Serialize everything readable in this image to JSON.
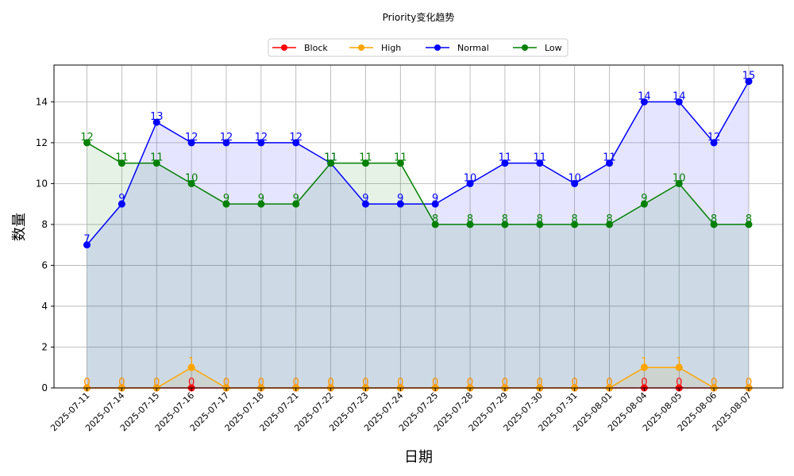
{
  "chart_data": {
    "type": "area",
    "title": "Priority变化趋势",
    "xlabel": "日期",
    "ylabel": "数量",
    "ylim": [
      0,
      15.8
    ],
    "yticks": [
      0,
      2,
      4,
      6,
      8,
      10,
      12,
      14
    ],
    "grid": true,
    "legend_position": "top-center",
    "categories": [
      "2025-07-11",
      "2025-07-14",
      "2025-07-15",
      "2025-07-16",
      "2025-07-17",
      "2025-07-18",
      "2025-07-21",
      "2025-07-22",
      "2025-07-23",
      "2025-07-24",
      "2025-07-25",
      "2025-07-28",
      "2025-07-29",
      "2025-07-30",
      "2025-07-31",
      "2025-08-01",
      "2025-08-04",
      "2025-08-05",
      "2025-08-06",
      "2025-08-07"
    ],
    "series": [
      {
        "name": "Block",
        "color": "#ff0000",
        "fill": "#ff0000",
        "values": [
          0,
          0,
          0,
          0,
          0,
          0,
          0,
          0,
          0,
          0,
          0,
          0,
          0,
          0,
          0,
          0,
          0,
          0,
          0,
          0
        ]
      },
      {
        "name": "High",
        "color": "#ffa500",
        "fill": "#ffa500",
        "values": [
          0,
          0,
          0,
          1,
          0,
          0,
          0,
          0,
          0,
          0,
          0,
          0,
          0,
          0,
          0,
          0,
          1,
          1,
          0,
          0
        ]
      },
      {
        "name": "Normal",
        "color": "#0000ff",
        "fill": "#0000ff",
        "values": [
          7,
          9,
          13,
          12,
          12,
          12,
          12,
          11,
          9,
          9,
          9,
          10,
          11,
          11,
          10,
          11,
          14,
          14,
          12,
          15
        ]
      },
      {
        "name": "Low",
        "color": "#008000",
        "fill": "#008000",
        "values": [
          12,
          11,
          11,
          10,
          9,
          9,
          9,
          11,
          11,
          11,
          8,
          8,
          8,
          8,
          8,
          8,
          9,
          10,
          8,
          8
        ]
      }
    ]
  }
}
